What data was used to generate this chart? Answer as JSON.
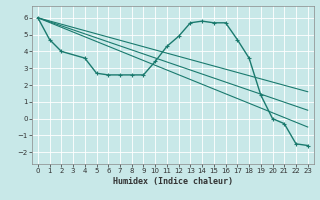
{
  "xlabel": "Humidex (Indice chaleur)",
  "ylabel": "",
  "bg_color": "#c8e8e8",
  "grid_color": "#ffffff",
  "line_color": "#1a7a6e",
  "xlim": [
    -0.5,
    23.5
  ],
  "ylim": [
    -2.7,
    6.7
  ],
  "xticks": [
    0,
    1,
    2,
    3,
    4,
    5,
    6,
    7,
    8,
    9,
    10,
    11,
    12,
    13,
    14,
    15,
    16,
    17,
    18,
    19,
    20,
    21,
    22,
    23
  ],
  "yticks": [
    -2,
    -1,
    0,
    1,
    2,
    3,
    4,
    5,
    6
  ],
  "series": [
    {
      "x": [
        0,
        1,
        2,
        4,
        5,
        6,
        7,
        8,
        9,
        10,
        11,
        12,
        13,
        14,
        15,
        16,
        17,
        18,
        19,
        20,
        21,
        22,
        23
      ],
      "y": [
        6.0,
        4.7,
        4.0,
        3.6,
        2.7,
        2.6,
        2.6,
        2.6,
        2.6,
        3.4,
        4.3,
        4.9,
        5.7,
        5.8,
        5.7,
        5.7,
        4.7,
        3.6,
        1.4,
        0.0,
        -0.3,
        -1.5,
        -1.6
      ],
      "marker": "+"
    },
    {
      "x": [
        0,
        23
      ],
      "y": [
        6.0,
        1.6
      ],
      "marker": null
    },
    {
      "x": [
        0,
        23
      ],
      "y": [
        6.0,
        0.5
      ],
      "marker": null
    },
    {
      "x": [
        0,
        23
      ],
      "y": [
        6.0,
        -0.5
      ],
      "marker": null
    }
  ]
}
